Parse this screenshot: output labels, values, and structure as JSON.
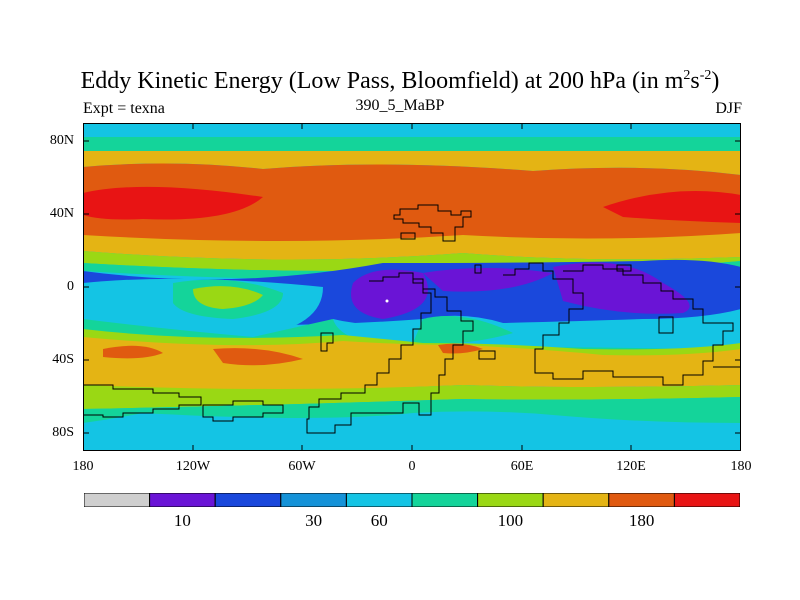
{
  "title": {
    "main": "Eddy Kinetic Energy (Low Pass, Bloomfield) at 200 hPa (in m",
    "sup1": "2",
    "mid": "s",
    "sup2": "-2",
    "end": ")"
  },
  "subtitle": {
    "left": "Expt = texna",
    "center": "390_5_MaBP",
    "right": "DJF"
  },
  "map": {
    "lat_labels": [
      "80N",
      "40N",
      "0",
      "40S",
      "80S"
    ],
    "lon_labels": [
      "180",
      "120W",
      "60W",
      "0",
      "60E",
      "120E",
      "180"
    ],
    "lat_range": [
      -90,
      90
    ],
    "lon_range": [
      -180,
      180
    ]
  },
  "colorbar": {
    "colors": [
      "#cfcfcf",
      "#6a14d6",
      "#1a48dc",
      "#1492d8",
      "#14c4e4",
      "#14d49a",
      "#9ad814",
      "#e4b414",
      "#e05a10",
      "#e81414"
    ],
    "labels": [
      {
        "text": "10",
        "index": 2
      },
      {
        "text": "30",
        "index": 4
      },
      {
        "text": "60",
        "index": 5
      },
      {
        "text": "100",
        "index": 7
      },
      {
        "text": "180",
        "index": 9
      }
    ]
  }
}
